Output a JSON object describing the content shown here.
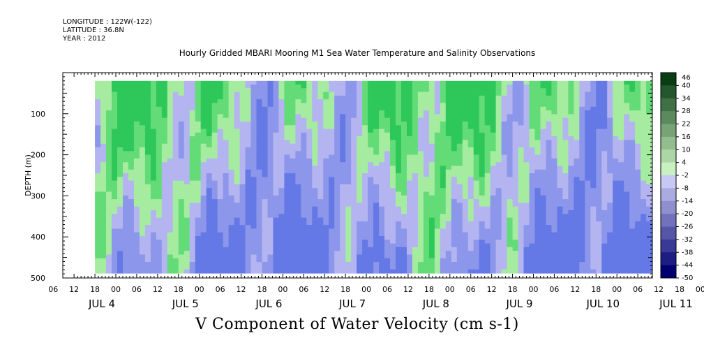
{
  "header": {
    "longitude": "LONGITUDE : 122W(-122)",
    "latitude": "LATITUDE : 36.8N",
    "year": "YEAR : 2012"
  },
  "chart_data": {
    "type": "heatmap",
    "title": "Hourly Gridded MBARI Mooring M1 Sea Water Temperature and Salinity Observations",
    "xlabel": "V Component of Water Velocity (cm s-1)",
    "ylabel": "DEPTH (m)",
    "y_axis": {
      "range": [
        500,
        0
      ],
      "ticks": [
        100,
        200,
        300,
        400,
        500
      ],
      "inverted": true
    },
    "x_axis": {
      "hour_ticks": [
        "06",
        "12",
        "18",
        "00",
        "06",
        "12",
        "18",
        "00",
        "06",
        "12",
        "18",
        "00",
        "06",
        "12",
        "18",
        "00",
        "06",
        "12",
        "18",
        "00",
        "06",
        "12",
        "18",
        "00",
        "06",
        "12",
        "18",
        "00",
        "06",
        "12",
        "18",
        "00"
      ],
      "day_labels": [
        "JUL  4",
        "JUL  5",
        "JUL  6",
        "JUL  7",
        "JUL  8",
        "JUL  9",
        "JUL 10",
        "JUL 11"
      ]
    },
    "colorbar": {
      "levels": [
        46,
        40,
        34,
        28,
        22,
        16,
        10,
        4,
        -2,
        -8,
        -14,
        -20,
        -26,
        -32,
        -38,
        -44,
        -50
      ],
      "positive_color_low": "#c8f0c0",
      "positive_color_high": "#0a3d14",
      "negative_color_low": "#c8c8f5",
      "negative_color_high": "#000070"
    },
    "field_palette": {
      "light_green": "#a6eca0",
      "green": "#63dc78",
      "dark_green": "#2ec85a",
      "lavender": "#b4b4f0",
      "periwinkle": "#8c96ea",
      "blue": "#6478e6"
    }
  }
}
